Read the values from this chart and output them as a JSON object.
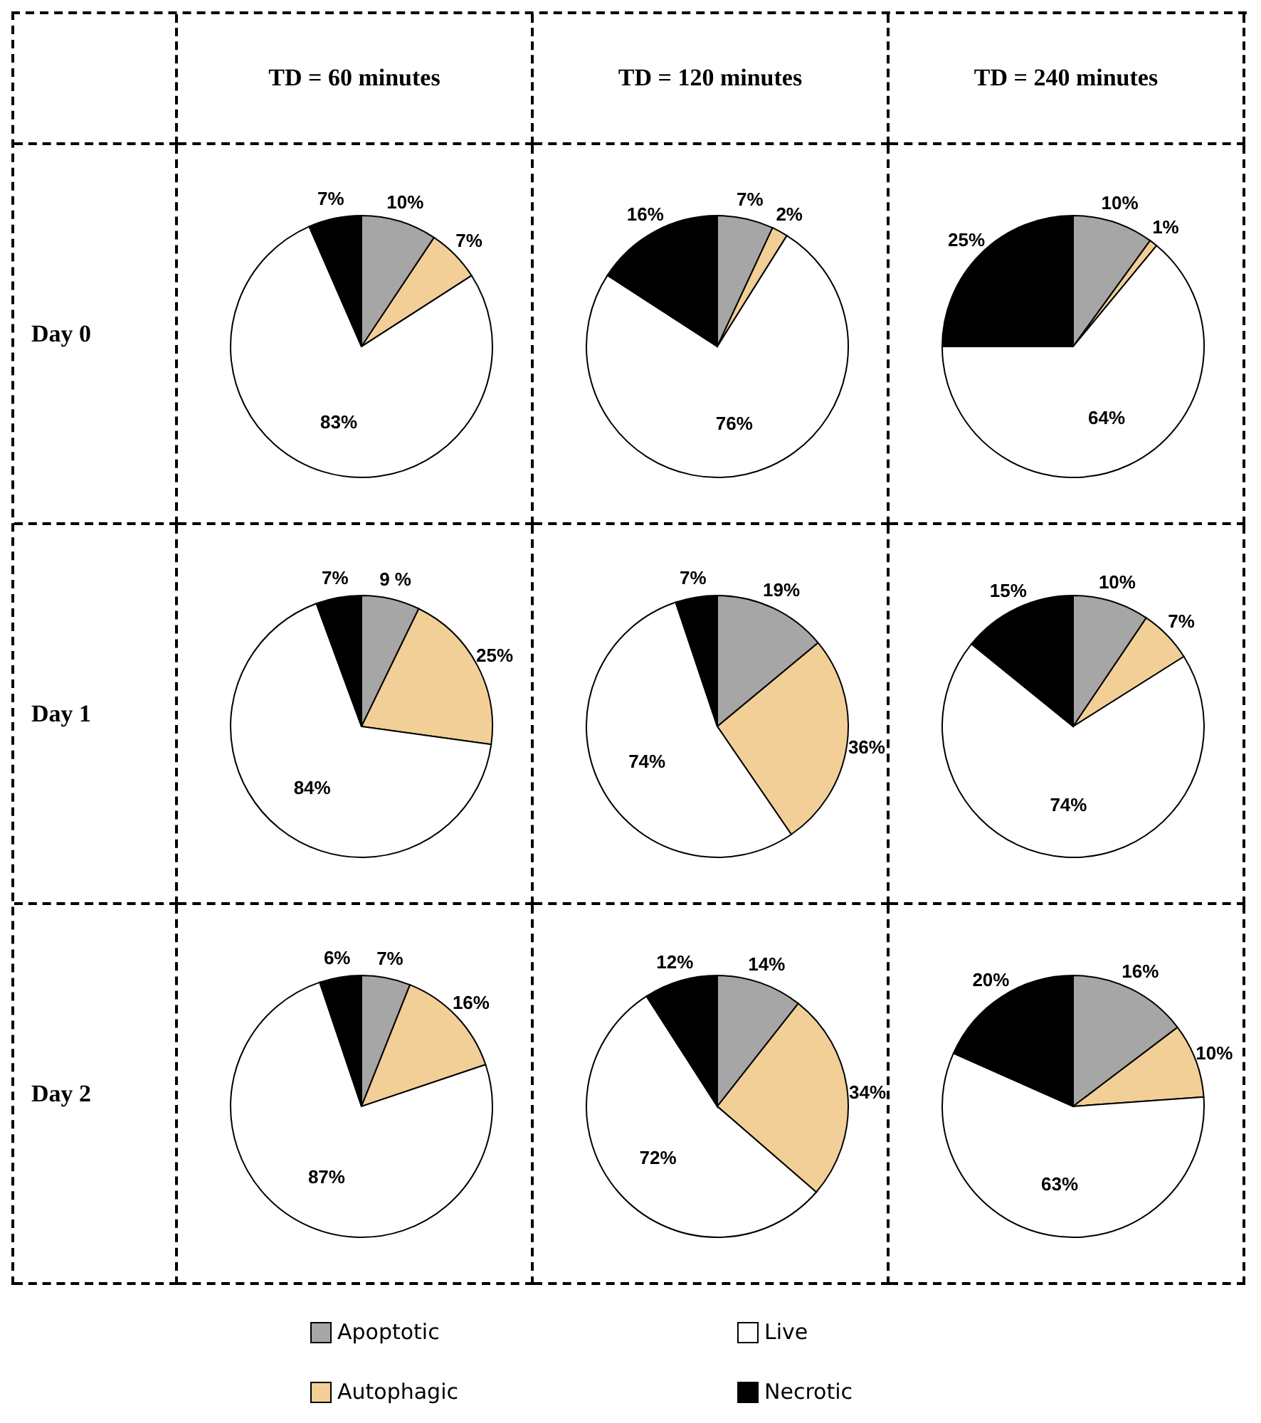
{
  "chart_data": [
    {
      "type": "pie",
      "title": "TD = 60 minutes",
      "ylabel": "Day 0",
      "legend": "bottom",
      "categories": [
        "Apoptotic",
        "Autophagic",
        "Live",
        "Necrotic"
      ],
      "values": [
        10,
        7,
        83,
        7
      ],
      "value_labels": [
        "10%",
        "7%",
        "83%",
        "7%"
      ],
      "colors": [
        "#a6a6a6",
        "#f2cf97",
        "#ffffff",
        "#000000"
      ]
    },
    {
      "type": "pie",
      "title": "TD = 120 minutes",
      "categories": [
        null,
        null,
        null,
        null
      ],
      "values": [
        7,
        2,
        76,
        16
      ],
      "value_labels": [
        "7%",
        "2%",
        "76%",
        "16%"
      ],
      "colors": [
        "#a6a6a6",
        "#f2cf97",
        "#ffffff",
        "#000000"
      ]
    },
    {
      "type": "pie",
      "title": "TD = 240 minutes",
      "categories": [
        null,
        null,
        null,
        null
      ],
      "values": [
        10,
        1,
        64,
        25
      ],
      "value_labels": [
        "10%",
        "1%",
        "64%",
        "25%"
      ],
      "colors": [
        "#a6a6a6",
        "#f2cf97",
        "#ffffff",
        "#000000"
      ]
    },
    {
      "type": "pie",
      "ylabel": "Day 1",
      "categories": [
        null,
        null,
        null,
        null
      ],
      "values": [
        9,
        25,
        84,
        7
      ],
      "value_labels": [
        "9 %",
        "25%",
        "84%",
        "7%"
      ],
      "colors": [
        "#a6a6a6",
        "#f2cf97",
        "#ffffff",
        "#000000"
      ]
    },
    {
      "type": "pie",
      "categories": [
        null,
        null,
        null,
        null
      ],
      "values": [
        19,
        36,
        74,
        7
      ],
      "value_labels": [
        "19%",
        "36%",
        "74%",
        "7%"
      ],
      "colors": [
        "#a6a6a6",
        "#f2cf97",
        "#ffffff",
        "#000000"
      ]
    },
    {
      "type": "pie",
      "categories": [
        null,
        null,
        null,
        null
      ],
      "values": [
        10,
        7,
        74,
        15
      ],
      "value_labels": [
        "10%",
        "7%",
        "74%",
        "15%"
      ],
      "colors": [
        "#a6a6a6",
        "#f2cf97",
        "#ffffff",
        "#000000"
      ]
    },
    {
      "type": "pie",
      "ylabel": "Day 2",
      "categories": [
        null,
        null,
        null,
        null
      ],
      "values": [
        7,
        16,
        87,
        6
      ],
      "value_labels": [
        "7%",
        "16%",
        "87%",
        "6%"
      ],
      "colors": [
        "#a6a6a6",
        "#f2cf97",
        "#ffffff",
        "#000000"
      ]
    },
    {
      "type": "pie",
      "categories": [
        null,
        null,
        null,
        null
      ],
      "values": [
        14,
        34,
        72,
        12
      ],
      "value_labels": [
        "14%",
        "34%",
        "72%",
        "12%"
      ],
      "colors": [
        "#a6a6a6",
        "#f2cf97",
        "#ffffff",
        "#000000"
      ]
    },
    {
      "type": "pie",
      "categories": [
        null,
        null,
        null,
        null
      ],
      "values": [
        16,
        10,
        63,
        20
      ],
      "value_labels": [
        "16%",
        "10%",
        "63%",
        "20%"
      ],
      "colors": [
        "#a6a6a6",
        "#f2cf97",
        "#ffffff",
        "#000000"
      ]
    }
  ]
}
